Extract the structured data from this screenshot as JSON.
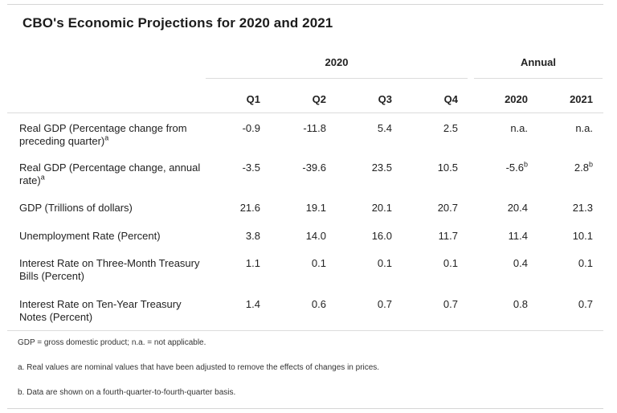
{
  "title": "CBO's Economic Projections for 2020 and 2021",
  "group_headers": {
    "quarterly": "2020",
    "annual": "Annual"
  },
  "column_headers": [
    "Q1",
    "Q2",
    "Q3",
    "Q4",
    "2020",
    "2021"
  ],
  "rows": [
    {
      "label": "Real GDP (Percentage change from preceding quarter)",
      "label_sup": "a",
      "values": [
        "-0.9",
        "-11.8",
        "5.4",
        "2.5",
        "n.a.",
        "n.a."
      ],
      "sups": [
        "",
        "",
        "",
        "",
        "",
        ""
      ]
    },
    {
      "label": "Real GDP (Percentage change, annual rate)",
      "label_sup": "a",
      "values": [
        "-3.5",
        "-39.6",
        "23.5",
        "10.5",
        "-5.6",
        "2.8"
      ],
      "sups": [
        "",
        "",
        "",
        "",
        "b",
        "b"
      ]
    },
    {
      "label": "GDP (Trillions of dollars)",
      "label_sup": "",
      "values": [
        "21.6",
        "19.1",
        "20.1",
        "20.7",
        "20.4",
        "21.3"
      ],
      "sups": [
        "",
        "",
        "",
        "",
        "",
        ""
      ]
    },
    {
      "label": "Unemployment Rate (Percent)",
      "label_sup": "",
      "values": [
        "3.8",
        "14.0",
        "16.0",
        "11.7",
        "11.4",
        "10.1"
      ],
      "sups": [
        "",
        "",
        "",
        "",
        "",
        ""
      ]
    },
    {
      "label": "Interest Rate on Three-Month Treasury Bills (Percent)",
      "label_sup": "",
      "values": [
        "1.1",
        "0.1",
        "0.1",
        "0.1",
        "0.4",
        "0.1"
      ],
      "sups": [
        "",
        "",
        "",
        "",
        "",
        ""
      ]
    },
    {
      "label": "Interest Rate on Ten-Year Treasury Notes (Percent)",
      "label_sup": "",
      "values": [
        "1.4",
        "0.6",
        "0.7",
        "0.7",
        "0.8",
        "0.7"
      ],
      "sups": [
        "",
        "",
        "",
        "",
        "",
        ""
      ]
    }
  ],
  "notes": [
    "GDP = gross domestic product; n.a. = not applicable.",
    "a. Real values are nominal values that have been adjusted to remove the effects of changes in prices.",
    "b. Data are shown on a fourth-quarter-to-fourth-quarter basis."
  ],
  "colors": {
    "text": "#222222",
    "rule": "#dcdcdc"
  }
}
